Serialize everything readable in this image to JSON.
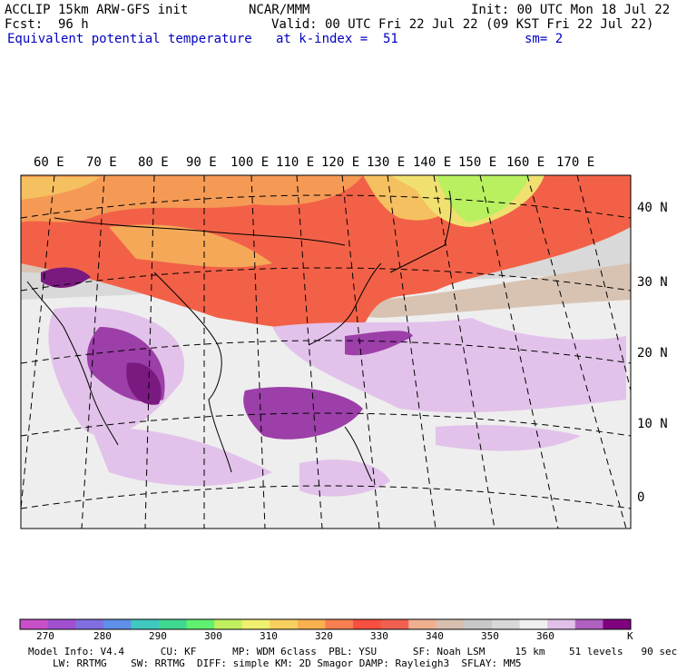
{
  "header": {
    "model": "ACCLIP 15km ARW-GFS init",
    "org": "NCAR/MMM",
    "init": "Init: 00 UTC Mon 18 Jul 22",
    "fcst_label": "Fcst:",
    "fcst_value": "96 h",
    "valid": "Valid: 00 UTC Fri 22 Jul 22 (09 KST Fri 22 Jul 22)",
    "field": "Equivalent potential temperature",
    "level": "at k-index =  51",
    "smooth": "sm= 2"
  },
  "map": {
    "lon_labels": [
      "60 E",
      "70 E",
      "80 E",
      "90 E",
      "100 E",
      "110 E",
      "120 E",
      "130 E",
      "140 E",
      "150 E",
      "160 E",
      "170 E"
    ],
    "lat_labels": [
      "40 N",
      "30 N",
      "20 N",
      "10 N",
      "0"
    ]
  },
  "colorbar": {
    "colors": [
      "#c84fc8",
      "#a04fd0",
      "#7f6fe0",
      "#5f8fe8",
      "#40c8c0",
      "#40d890",
      "#60f070",
      "#c0f060",
      "#f0f070",
      "#f8d060",
      "#f8b050",
      "#f88050",
      "#f85040",
      "#f06050",
      "#f0b090",
      "#d8c0b0",
      "#c8c8c8",
      "#d8d8d8",
      "#f0f0f0",
      "#e0c0e8",
      "#b060c0",
      "#800080"
    ],
    "ticks": [
      "270",
      "280",
      "290",
      "300",
      "310",
      "320",
      "330",
      "340",
      "350",
      "360",
      "K"
    ]
  },
  "footer": {
    "line1": "Model Info: V4.4      CU: KF      MP: WDM 6class  PBL: YSU      SF: Noah LSM     15 km    51 levels   90 sec",
    "line2": "LW: RRTMG    SW: RRTMG  DIFF: simple KM: 2D Smagor DAMP: Rayleigh3  SFLAY: MM5"
  }
}
